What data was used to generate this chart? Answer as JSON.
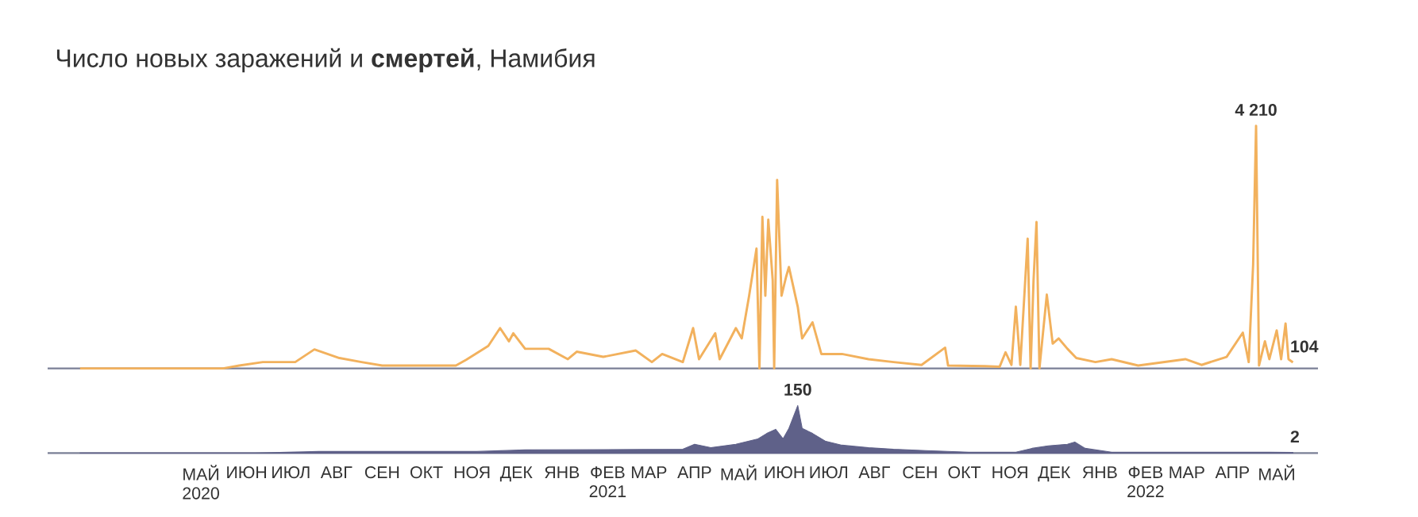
{
  "chart_data": [
    {
      "type": "line",
      "title": "Число новых заражений и **смертей**, Намибия",
      "color": "#f2b15d",
      "line_style": "solid",
      "tick_labels": false,
      "xlim": [
        "2020-01-18",
        "2022-05-29"
      ],
      "x": [
        "2020-02-09",
        "2020-05-16",
        "2020-05-27",
        "2020-06-12",
        "2020-07-04",
        "2020-07-17",
        "2020-08-03",
        "2020-08-18",
        "2020-09-01",
        "2020-09-28",
        "2020-10-21",
        "2020-10-28",
        "2020-11-12",
        "2020-11-20",
        "2020-11-26",
        "2020-11-29",
        "2020-12-07",
        "2020-12-23",
        "2021-01-05",
        "2021-01-11",
        "2021-01-29",
        "2021-02-20",
        "2021-03-03",
        "2021-03-10",
        "2021-03-24",
        "2021-03-31",
        "2021-04-04",
        "2021-04-15",
        "2021-04-18",
        "2021-04-29",
        "2021-05-03",
        "2021-05-08",
        "2021-05-13",
        "2021-05-15",
        "2021-05-17",
        "2021-05-19",
        "2021-05-21",
        "2021-05-24",
        "2021-05-25",
        "2021-05-27",
        "2021-05-30",
        "2021-06-02",
        "2021-06-04",
        "2021-06-10",
        "2021-06-13",
        "2021-06-20",
        "2021-06-26",
        "2021-07-10",
        "2021-07-28",
        "2021-08-14",
        "2021-09-02",
        "2021-09-18",
        "2021-09-20",
        "2021-10-15",
        "2021-10-25",
        "2021-10-29",
        "2021-11-02",
        "2021-11-05",
        "2021-11-08",
        "2021-11-13",
        "2021-11-15",
        "2021-11-17",
        "2021-11-19",
        "2021-11-21",
        "2021-11-26",
        "2021-11-30",
        "2021-12-04",
        "2021-12-10",
        "2021-12-16",
        "2021-12-29",
        "2022-01-09",
        "2022-01-27",
        "2022-02-28",
        "2022-03-11",
        "2022-03-28",
        "2022-04-08",
        "2022-04-12",
        "2022-04-15",
        "2022-04-17",
        "2022-04-19",
        "2022-04-23",
        "2022-04-26",
        "2022-05-01",
        "2022-05-04",
        "2022-05-07",
        "2022-05-09",
        "2022-05-12"
      ],
      "values": [
        0,
        0,
        50,
        110,
        110,
        330,
        180,
        110,
        50,
        50,
        50,
        150,
        390,
        700,
        470,
        610,
        340,
        340,
        160,
        290,
        200,
        310,
        110,
        250,
        110,
        700,
        160,
        610,
        160,
        700,
        520,
        1260,
        2080,
        0,
        2630,
        1260,
        2580,
        1530,
        0,
        3270,
        1260,
        1580,
        1760,
        1070,
        520,
        800,
        250,
        250,
        160,
        110,
        60,
        360,
        50,
        40,
        30,
        280,
        60,
        1070,
        60,
        2250,
        0,
        1530,
        2540,
        0,
        1280,
        430,
        520,
        340,
        180,
        110,
        160,
        50,
        160,
        60,
        200,
        620,
        110,
        1800,
        4210,
        50,
        470,
        160,
        660,
        160,
        780,
        160,
        104
      ],
      "value_labels": [
        null,
        null,
        null,
        null,
        null,
        null,
        null,
        null,
        null,
        null,
        null,
        null,
        null,
        null,
        null,
        null,
        null,
        null,
        null,
        null,
        null,
        null,
        null,
        null,
        null,
        null,
        null,
        null,
        null,
        null,
        null,
        null,
        null,
        null,
        null,
        null,
        null,
        null,
        null,
        null,
        null,
        null,
        null,
        null,
        null,
        null,
        null,
        null,
        null,
        null,
        null,
        null,
        null,
        null,
        null,
        null,
        null,
        null,
        null,
        null,
        null,
        null,
        null,
        null,
        null,
        null,
        null,
        null,
        null,
        null,
        null,
        null,
        null,
        null,
        null,
        null,
        null,
        null,
        "4 210",
        null,
        null,
        null,
        null,
        null,
        null,
        null,
        "104"
      ]
    },
    {
      "type": "area",
      "color": "#5f6189",
      "tick_labels": "x",
      "xlim": [
        "2020-01-18",
        "2022-05-29"
      ],
      "xticks": [
        {
          "value": "2020-05-01",
          "label": "МАЙ 2020"
        },
        {
          "value": "2020-06-01",
          "label": "ИЮН"
        },
        {
          "value": "2020-07-01",
          "label": "ИЮЛ"
        },
        {
          "value": "2020-08-01",
          "label": "АВГ"
        },
        {
          "value": "2020-09-01",
          "label": "СЕН"
        },
        {
          "value": "2020-10-01",
          "label": "ОКТ"
        },
        {
          "value": "2020-11-01",
          "label": "НОЯ"
        },
        {
          "value": "2020-12-01",
          "label": "ДЕК"
        },
        {
          "value": "2021-01-01",
          "label": "ЯНВ"
        },
        {
          "value": "2021-02-01",
          "label": "ФЕВ 2021"
        },
        {
          "value": "2021-03-01",
          "label": "МАР"
        },
        {
          "value": "2021-04-01",
          "label": "АПР"
        },
        {
          "value": "2021-05-01",
          "label": "МАЙ"
        },
        {
          "value": "2021-06-01",
          "label": "ИЮН"
        },
        {
          "value": "2021-07-01",
          "label": "ИЮЛ"
        },
        {
          "value": "2021-08-01",
          "label": "АВГ"
        },
        {
          "value": "2021-09-01",
          "label": "СЕН"
        },
        {
          "value": "2021-10-01",
          "label": "ОКТ"
        },
        {
          "value": "2021-11-01",
          "label": "НОЯ"
        },
        {
          "value": "2021-12-01",
          "label": "ДЕК"
        },
        {
          "value": "2022-01-01",
          "label": "ЯНВ"
        },
        {
          "value": "2022-02-01",
          "label": "ФЕВ 2022"
        },
        {
          "value": "2022-03-01",
          "label": "МАР"
        },
        {
          "value": "2022-04-01",
          "label": "АПР"
        },
        {
          "value": "2022-05-01",
          "label": "МАЙ"
        }
      ],
      "x": [
        "2020-02-09",
        "2020-06-07",
        "2020-07-20",
        "2020-11-04",
        "2020-12-07",
        "2021-03-24",
        "2021-04-01",
        "2021-04-12",
        "2021-04-29",
        "2021-05-14",
        "2021-05-20",
        "2021-05-26",
        "2021-05-31",
        "2021-06-04",
        "2021-06-10",
        "2021-06-13",
        "2021-06-20",
        "2021-06-29",
        "2021-07-10",
        "2021-07-28",
        "2021-08-14",
        "2021-09-05",
        "2021-10-04",
        "2021-11-05",
        "2021-11-16",
        "2021-11-27",
        "2021-12-10",
        "2021-12-15",
        "2021-12-22",
        "2022-01-09",
        "2022-04-26",
        "2022-05-12"
      ],
      "values": [
        0,
        0,
        5,
        5,
        10,
        12,
        28,
        17,
        28,
        45,
        62,
        75,
        45,
        78,
        150,
        78,
        62,
        37,
        25,
        17,
        12,
        8,
        3,
        3,
        15,
        23,
        28,
        35,
        15,
        3,
        3,
        2
      ],
      "value_labels": [
        null,
        null,
        null,
        null,
        null,
        null,
        null,
        null,
        null,
        null,
        null,
        null,
        null,
        null,
        "150",
        null,
        null,
        null,
        null,
        null,
        null,
        null,
        null,
        null,
        null,
        null,
        null,
        null,
        null,
        null,
        null,
        "2"
      ]
    }
  ]
}
